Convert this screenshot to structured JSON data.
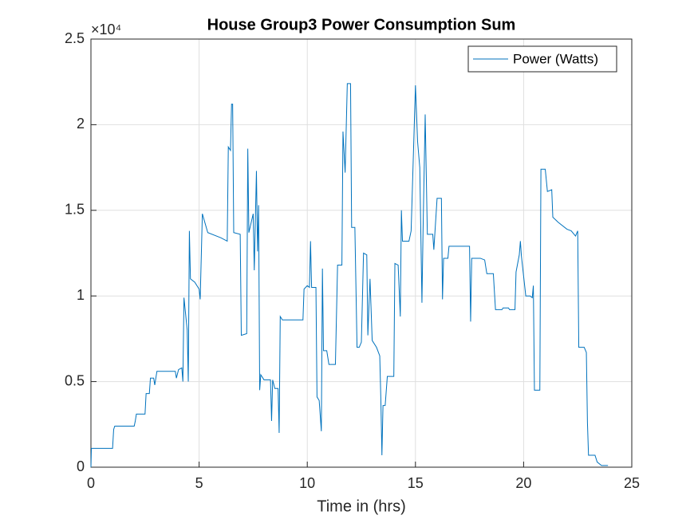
{
  "chart_data": {
    "type": "line",
    "title": "House Group3 Power Consumption Sum",
    "xlabel": "Time in (hrs)",
    "y_scale_label": "×10⁴",
    "xlim": [
      0,
      25
    ],
    "xticks": [
      0,
      5,
      10,
      15,
      20,
      25
    ],
    "ylim": [
      0,
      25000
    ],
    "yticks": [
      {
        "value": 0,
        "label": "0"
      },
      {
        "value": 5000,
        "label": "0.5"
      },
      {
        "value": 10000,
        "label": "1"
      },
      {
        "value": 15000,
        "label": "1.5"
      },
      {
        "value": 20000,
        "label": "2"
      },
      {
        "value": 25000,
        "label": "2.5"
      }
    ],
    "grid": true,
    "legend": "top-right",
    "series": [
      {
        "name": "Power (Watts)",
        "color": "#0072bd",
        "x": [
          0,
          0.02,
          1.0,
          1.05,
          1.1,
          2.0,
          2.05,
          2.1,
          2.5,
          2.55,
          2.7,
          2.75,
          2.9,
          2.95,
          3.05,
          3.9,
          3.95,
          4.05,
          4.2,
          4.25,
          4.3,
          4.45,
          4.5,
          4.55,
          4.6,
          4.8,
          5.0,
          5.05,
          5.15,
          5.4,
          6.0,
          6.3,
          6.35,
          6.45,
          6.5,
          6.55,
          6.6,
          6.9,
          6.95,
          7.2,
          7.25,
          7.3,
          7.5,
          7.55,
          7.65,
          7.7,
          7.75,
          7.8,
          7.85,
          8.0,
          8.3,
          8.35,
          8.4,
          8.5,
          8.65,
          8.7,
          8.75,
          8.85,
          9.8,
          9.85,
          10.0,
          10.1,
          10.15,
          10.2,
          10.4,
          10.45,
          10.55,
          10.65,
          10.7,
          10.75,
          10.9,
          11.0,
          11.3,
          11.4,
          11.6,
          11.65,
          11.75,
          11.85,
          12.0,
          12.05,
          12.2,
          12.3,
          12.4,
          12.5,
          12.6,
          12.75,
          12.8,
          12.9,
          13.0,
          13.2,
          13.35,
          13.4,
          13.45,
          13.5,
          13.6,
          13.7,
          14.0,
          14.05,
          14.2,
          14.3,
          14.35,
          14.4,
          14.7,
          14.8,
          15.0,
          15.1,
          15.2,
          15.3,
          15.35,
          15.45,
          15.55,
          15.8,
          15.85,
          16.0,
          16.2,
          16.25,
          16.3,
          16.5,
          16.55,
          17.5,
          17.55,
          17.6,
          18.0,
          18.2,
          18.3,
          18.6,
          18.7,
          19.0,
          19.05,
          19.3,
          19.35,
          19.6,
          19.65,
          19.8,
          19.85,
          19.9,
          20.1,
          20.3,
          20.4,
          20.45,
          20.5,
          20.75,
          20.8,
          21.0,
          21.1,
          21.3,
          21.35,
          21.6,
          22.0,
          22.2,
          22.4,
          22.5,
          22.55,
          22.8,
          22.9,
          22.95,
          23.0,
          23.3,
          23.4,
          23.6,
          23.9
        ],
        "values": [
          0,
          1100,
          1100,
          2200,
          2400,
          2400,
          2700,
          3100,
          3100,
          4300,
          4300,
          5200,
          5200,
          4800,
          5600,
          5600,
          5200,
          5700,
          5800,
          5000,
          9900,
          8000,
          5000,
          13800,
          11000,
          10800,
          10400,
          9800,
          14800,
          13700,
          13400,
          13200,
          18700,
          18500,
          21200,
          21200,
          13700,
          13600,
          7700,
          7800,
          18600,
          13700,
          14800,
          11500,
          17300,
          12600,
          15300,
          4500,
          5400,
          5100,
          5100,
          2700,
          5100,
          4600,
          4600,
          2000,
          8800,
          8600,
          8600,
          10400,
          10600,
          10500,
          13200,
          10500,
          10500,
          4100,
          3900,
          2100,
          11600,
          6800,
          6800,
          6000,
          6000,
          11800,
          11800,
          19600,
          17200,
          22400,
          22400,
          14000,
          14000,
          7000,
          7000,
          7300,
          12500,
          12400,
          7700,
          11000,
          7400,
          7000,
          6500,
          4000,
          700,
          3600,
          3600,
          5300,
          5300,
          11900,
          11800,
          8800,
          15000,
          13200,
          13200,
          13800,
          22300,
          19000,
          17500,
          9600,
          13700,
          20600,
          13600,
          13600,
          12700,
          15700,
          15700,
          9800,
          12200,
          12200,
          12900,
          12900,
          8500,
          12200,
          12200,
          12100,
          11300,
          11300,
          9200,
          9200,
          9300,
          9300,
          9200,
          9200,
          11400,
          12400,
          13200,
          12300,
          10000,
          10000,
          9900,
          10600,
          4500,
          4500,
          17400,
          17400,
          16100,
          16200,
          14600,
          14300,
          13900,
          13800,
          13500,
          13800,
          7000,
          7000,
          6700,
          2600,
          700,
          700,
          300,
          100,
          100
        ]
      }
    ]
  }
}
